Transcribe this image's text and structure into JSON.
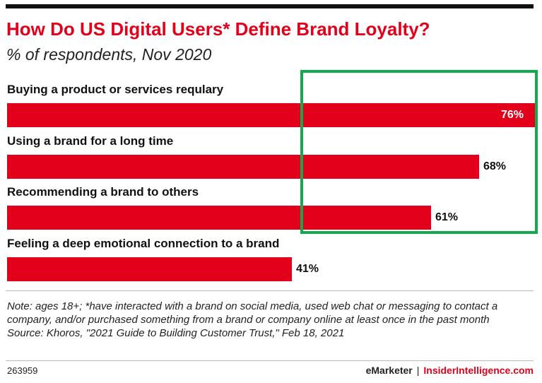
{
  "header": {
    "title": "How Do US Digital Users* Define Brand Loyalty?",
    "subtitle": "% of respondents, Nov 2020"
  },
  "footer": {
    "note": "Note: ages 18+; *have interacted with a brand on social media, used web chat or messaging to contact a company, and/or purchased something from a brand or company online at least once in the past month",
    "source": "Source: Khoros, \"2021 Guide to Building Customer Trust,\" Feb 18, 2021",
    "chart_id": "263959",
    "brand_left": "eMarketer",
    "brand_separator": "|",
    "brand_right": "InsiderIntelligence.com"
  },
  "colors": {
    "bar": "#e2001a",
    "highlight": "#13a94f"
  },
  "chart_data": {
    "type": "bar",
    "orientation": "horizontal",
    "categories": [
      "Buying a product or services requlary",
      "Using a brand for a long time",
      "Recommending a brand to others",
      "Feeling a deep emotional connection to a brand"
    ],
    "values": [
      76,
      68,
      61,
      41
    ],
    "value_labels": [
      "76%",
      "68%",
      "61%",
      "41%"
    ],
    "title": "How Do US Digital Users* Define Brand Loyalty?",
    "subtitle": "% of respondents, Nov 2020",
    "xlim": [
      0,
      76
    ],
    "grid": false
  }
}
